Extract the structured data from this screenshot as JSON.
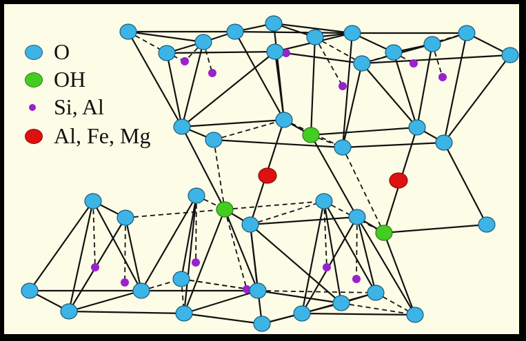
{
  "legend": [
    {
      "key": "O",
      "label": "O",
      "color": "#3cb4e6",
      "marker": "large-circle"
    },
    {
      "key": "OH",
      "label": "OH",
      "color": "#44cc22",
      "marker": "large-circle"
    },
    {
      "key": "SiAl",
      "label": "Si, Al",
      "color": "#9922cc",
      "marker": "small-dot"
    },
    {
      "key": "AlFeMg",
      "label": "Al, Fe, Mg",
      "color": "#dd1111",
      "marker": "large-circle"
    }
  ],
  "colors": {
    "background": "#fdfce6",
    "border": "#000000",
    "bond": "#111111",
    "atom_outline": "#1a5b7a"
  }
}
